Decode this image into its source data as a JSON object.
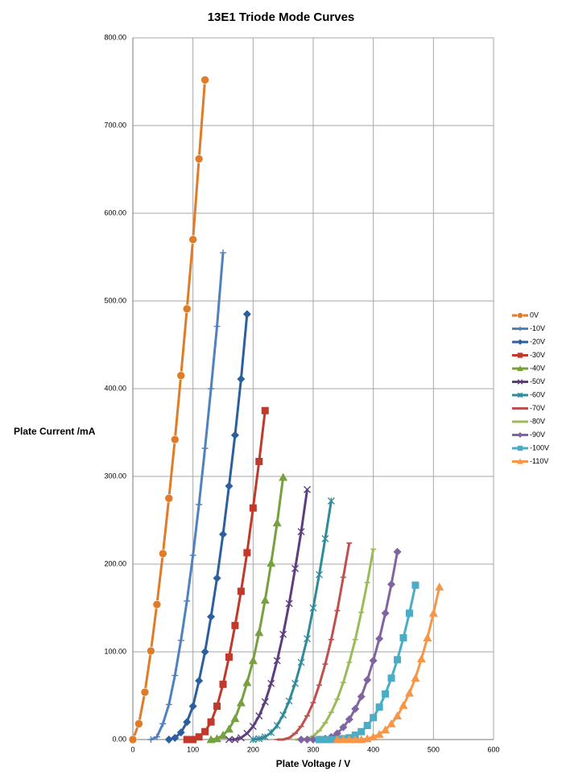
{
  "chart_data": {
    "type": "line",
    "title": "13E1 Triode Mode Curves",
    "x_label": "Plate Voltage / V",
    "y_label": "Plate Current /mA",
    "xlim": [
      0,
      600
    ],
    "xticks": [
      0,
      100,
      200,
      300,
      400,
      500,
      600
    ],
    "ylim": [
      0,
      800
    ],
    "yticks": [
      {
        "value": 0,
        "label": "0.00"
      },
      {
        "value": 100,
        "label": "100.00"
      },
      {
        "value": 200,
        "label": "200.00"
      },
      {
        "value": 300,
        "label": "300.00"
      },
      {
        "value": 400,
        "label": "400.00"
      },
      {
        "value": 500,
        "label": "500.00"
      },
      {
        "value": 600,
        "label": "600.00"
      },
      {
        "value": 700,
        "label": "700.00"
      },
      {
        "value": 800,
        "label": "800.00"
      }
    ],
    "grid": true,
    "legend": "right",
    "series": [
      {
        "name": "0V",
        "color": "#e07b27",
        "marker": "circle",
        "x": [
          0,
          10,
          20,
          30,
          40,
          50,
          60,
          70,
          80,
          90,
          100,
          110,
          120
        ],
        "values": [
          0,
          18,
          54,
          101,
          154,
          212,
          275,
          342,
          415,
          491,
          570,
          662,
          752
        ]
      },
      {
        "name": "-10V",
        "color": "#4f81bd",
        "marker": "plus",
        "x": [
          30,
          40,
          50,
          60,
          70,
          80,
          90,
          100,
          110,
          120,
          130,
          140,
          150
        ],
        "values": [
          0,
          3,
          18,
          40,
          73,
          113,
          158,
          210,
          268,
          332,
          400,
          471,
          555
        ]
      },
      {
        "name": "-20V",
        "color": "#2c5f9e",
        "marker": "diamond",
        "x": [
          60,
          70,
          80,
          90,
          100,
          110,
          120,
          130,
          140,
          150,
          160,
          170,
          180,
          190
        ],
        "values": [
          0,
          2,
          8,
          20,
          38,
          67,
          100,
          140,
          184,
          234,
          289,
          347,
          411,
          485
        ]
      },
      {
        "name": "-30V",
        "color": "#c0392b",
        "marker": "square",
        "x": [
          90,
          100,
          110,
          120,
          130,
          140,
          150,
          160,
          170,
          180,
          190,
          200,
          210,
          220
        ],
        "values": [
          0,
          0,
          3,
          9,
          20,
          38,
          63,
          94,
          130,
          169,
          213,
          264,
          317,
          375
        ]
      },
      {
        "name": "-40V",
        "color": "#77a03e",
        "marker": "triangle",
        "x": [
          130,
          140,
          150,
          160,
          170,
          180,
          190,
          200,
          210,
          220,
          230,
          240,
          250
        ],
        "values": [
          0,
          1,
          5,
          12,
          24,
          42,
          65,
          90,
          122,
          159,
          201,
          247,
          299
        ]
      },
      {
        "name": "-50V",
        "color": "#5e3d7e",
        "marker": "x",
        "x": [
          160,
          170,
          180,
          190,
          200,
          210,
          220,
          230,
          240,
          250,
          260,
          270,
          280,
          290
        ],
        "values": [
          0,
          0,
          2,
          7,
          15,
          27,
          43,
          64,
          90,
          120,
          155,
          195,
          237,
          285
        ]
      },
      {
        "name": "-60V",
        "color": "#2e8b9a",
        "marker": "star",
        "x": [
          200,
          210,
          220,
          230,
          240,
          250,
          260,
          270,
          280,
          290,
          300,
          310,
          320,
          330
        ],
        "values": [
          0,
          1,
          3,
          8,
          16,
          28,
          44,
          64,
          88,
          115,
          150,
          188,
          229,
          272
        ]
      },
      {
        "name": "-70V",
        "color": "#c0504d",
        "marker": "dash",
        "x": [
          240,
          250,
          260,
          270,
          280,
          290,
          300,
          310,
          320,
          330,
          340,
          350,
          360
        ],
        "values": [
          0,
          0,
          2,
          7,
          15,
          27,
          42,
          62,
          86,
          114,
          147,
          185,
          224
        ]
      },
      {
        "name": "-80V",
        "color": "#9bbb59",
        "marker": "dash",
        "x": [
          270,
          280,
          290,
          300,
          310,
          320,
          330,
          340,
          350,
          360,
          370,
          380,
          390,
          400
        ],
        "values": [
          0,
          0,
          1,
          4,
          10,
          19,
          31,
          46,
          65,
          88,
          114,
          145,
          179,
          217
        ]
      },
      {
        "name": "-90V",
        "color": "#8064a2",
        "marker": "diamond",
        "x": [
          280,
          290,
          300,
          310,
          320,
          330,
          340,
          350,
          360,
          370,
          380,
          390,
          400,
          410,
          420,
          430,
          440
        ],
        "values": [
          0,
          0,
          0,
          0,
          1,
          3,
          7,
          14,
          23,
          35,
          49,
          68,
          90,
          115,
          144,
          177,
          214
        ]
      },
      {
        "name": "-100V",
        "color": "#4bacc6",
        "marker": "square",
        "x": [
          310,
          320,
          330,
          340,
          350,
          360,
          370,
          380,
          390,
          400,
          410,
          420,
          430,
          440,
          450,
          460,
          470
        ],
        "values": [
          0,
          0,
          0,
          0,
          1,
          2,
          5,
          9,
          16,
          25,
          37,
          52,
          70,
          91,
          116,
          144,
          176
        ]
      },
      {
        "name": "-110V",
        "color": "#f79646",
        "marker": "triangle",
        "x": [
          340,
          350,
          360,
          370,
          380,
          390,
          400,
          410,
          420,
          430,
          440,
          450,
          460,
          470,
          480,
          490,
          500,
          510
        ],
        "values": [
          0,
          0,
          0,
          0,
          0,
          1,
          3,
          6,
          11,
          18,
          27,
          39,
          53,
          70,
          92,
          116,
          144,
          174
        ]
      }
    ]
  }
}
